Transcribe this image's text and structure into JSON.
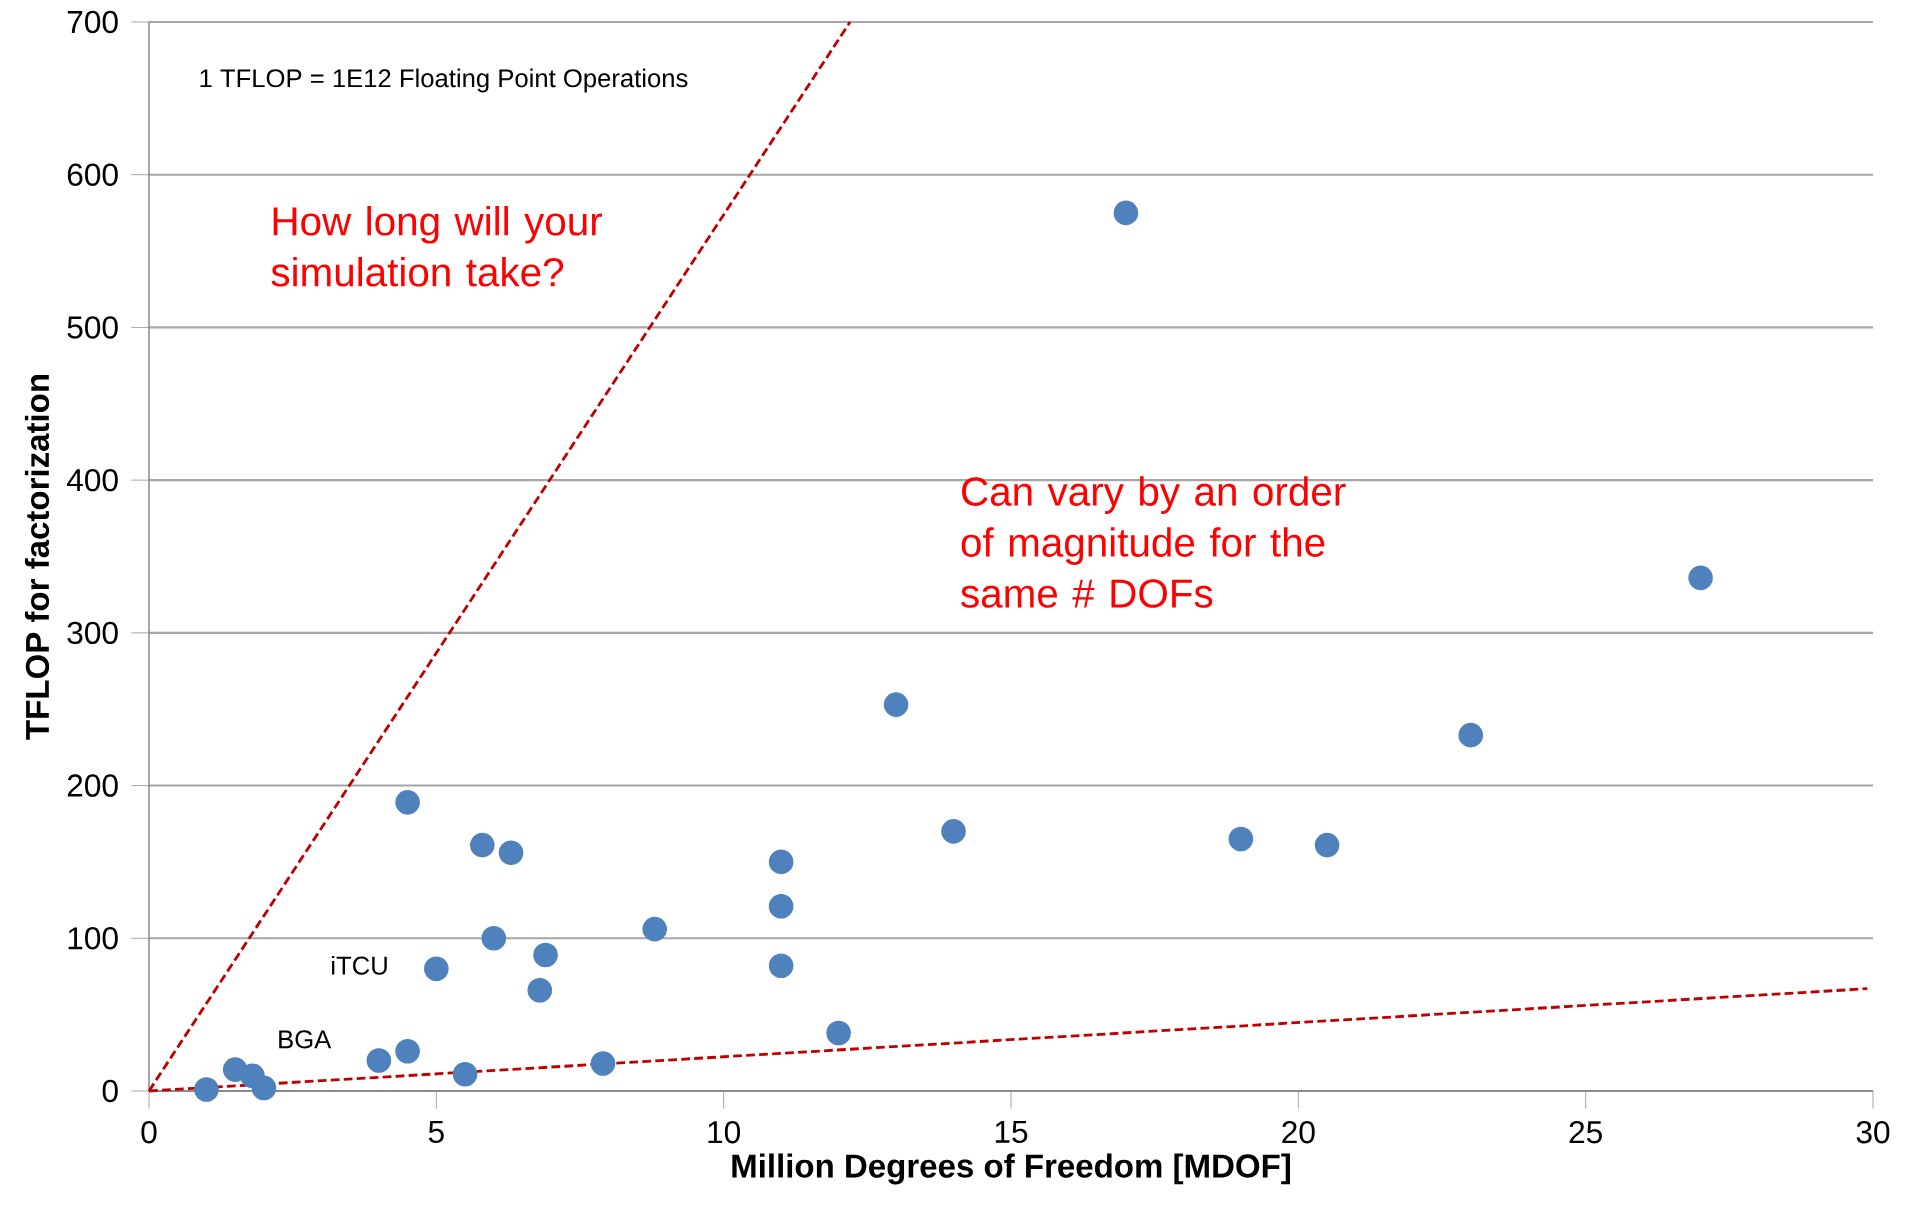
{
  "chart_data": {
    "type": "scatter",
    "xlabel": "Million Degrees of Freedom [MDOF]",
    "ylabel": "TFLOP for factorization",
    "xlim": [
      0,
      30
    ],
    "xticks": [
      0,
      5,
      10,
      15,
      20,
      25,
      30
    ],
    "ylim": [
      0,
      700
    ],
    "yticks": [
      0,
      100,
      200,
      300,
      400,
      500,
      600,
      700
    ],
    "grid": "y",
    "marker": "circle",
    "series": [
      {
        "color": "#4f81bd",
        "x": [
          1.0,
          1.5,
          1.8,
          2.0,
          4.0,
          4.5,
          4.5,
          5.0,
          5.5,
          5.8,
          6.3,
          6.0,
          6.8,
          6.9,
          7.9,
          8.8,
          11,
          11,
          11,
          12,
          13,
          14,
          17,
          19,
          20.5,
          23,
          27
        ],
        "values": [
          1,
          14,
          10,
          2,
          20,
          26,
          189,
          80,
          11,
          161,
          156,
          100,
          66,
          89,
          18,
          106,
          150,
          121,
          82,
          38,
          253,
          170,
          575,
          165,
          161,
          233,
          336
        ]
      },
      {
        "type": "line",
        "color": "#c00000",
        "line_style": "dashed",
        "marker": "none",
        "x": [
          0,
          12.2
        ],
        "values": [
          0,
          700
        ]
      },
      {
        "type": "line",
        "color": "#c00000",
        "line_style": "dashed",
        "marker": "none",
        "x": [
          0,
          29.9
        ],
        "values": [
          0,
          67
        ]
      }
    ],
    "annotations": [
      "1 TFLOP = 1E12 Floating Point Operations",
      "How long will your simulation take?",
      "Can vary by an order of magnitude for the same # DOFs",
      {
        "text": "iTCU",
        "x": 5.0,
        "y": 80
      },
      {
        "text": "BGA",
        "x": 4.0,
        "y": 20
      }
    ]
  }
}
